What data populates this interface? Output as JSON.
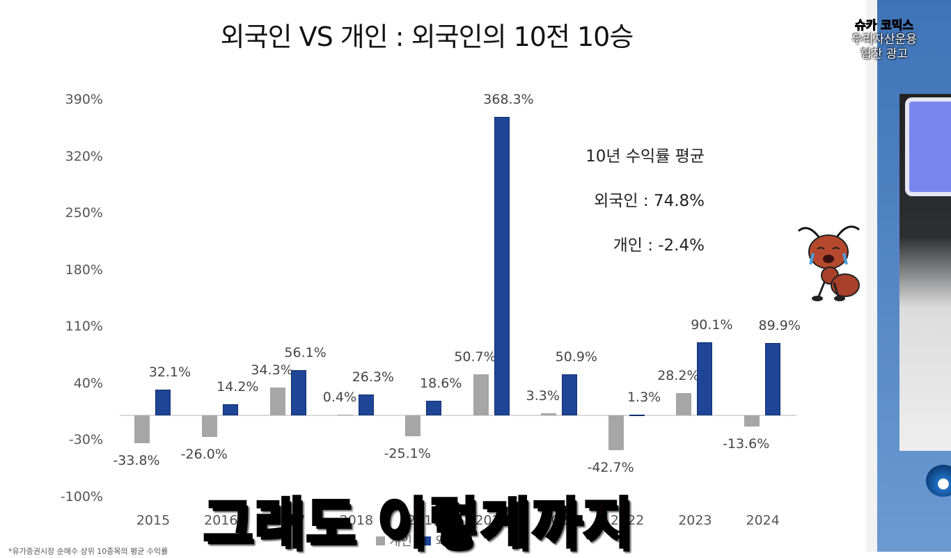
{
  "title": "외국인 VS 개인 : 외국인의 10전 10승",
  "chart_data": {
    "type": "bar",
    "title": "외국인 VS 개인 : 외국인의 10전 10승",
    "xlabel": "",
    "ylabel": "",
    "categories": [
      "2015",
      "2016",
      "2017",
      "2018",
      "2019",
      "2020",
      "2021",
      "2022",
      "2023",
      "2024"
    ],
    "series": [
      {
        "name": "개인",
        "color": "#a6a6a6",
        "values": [
          -33.8,
          -26.0,
          34.3,
          0.4,
          -25.1,
          50.7,
          3.3,
          -42.7,
          28.2,
          -13.6
        ]
      },
      {
        "name": "외국인",
        "color": "#1f4597",
        "values": [
          32.1,
          14.2,
          56.1,
          26.3,
          18.6,
          368.3,
          50.9,
          1.3,
          90.1,
          89.9
        ]
      }
    ],
    "data_labels": {
      "개인": [
        "-33.8%",
        "-26.0%",
        "34.3%",
        "0.4%",
        "-25.1%",
        "50.7%",
        "3.3%",
        "-42.7%",
        "28.2%",
        "-13.6%"
      ],
      "외국인": [
        "32.1%",
        "14.2%",
        "56.1%",
        "26.3%",
        "18.6%",
        "368.3%",
        "50.9%",
        "1.3%",
        "90.1%",
        "89.9%"
      ]
    },
    "yticks": [
      "390%",
      "320%",
      "250%",
      "180%",
      "110%",
      "40%",
      "-30%",
      "-100%"
    ],
    "ytick_values": [
      390,
      320,
      250,
      180,
      110,
      40,
      -30,
      -100
    ],
    "ylim": [
      -100,
      390
    ],
    "grid": false,
    "legend_position": "bottom",
    "legend": [
      "개인",
      "외국인"
    ],
    "annotations": [
      "10년 수익률 평균",
      "외국인 : 74.8%",
      "개인 : -2.4%"
    ]
  },
  "average_box": {
    "heading": "10년 수익률 평균",
    "foreign": "외국인 : 74.8%",
    "individual": "개인 : -2.4%"
  },
  "legend": {
    "individual": "개인",
    "foreign": "외국인"
  },
  "subtitle_caption": "그래도 이렇게까지",
  "sponsor_badge": {
    "logo_a": "슈카",
    "logo_b": "코믹스",
    "line1": "우리자산운용",
    "line2": "협찬 광고"
  },
  "footnote": "*유가증권시장 순매수 상위 10종목의 평균 수익률"
}
